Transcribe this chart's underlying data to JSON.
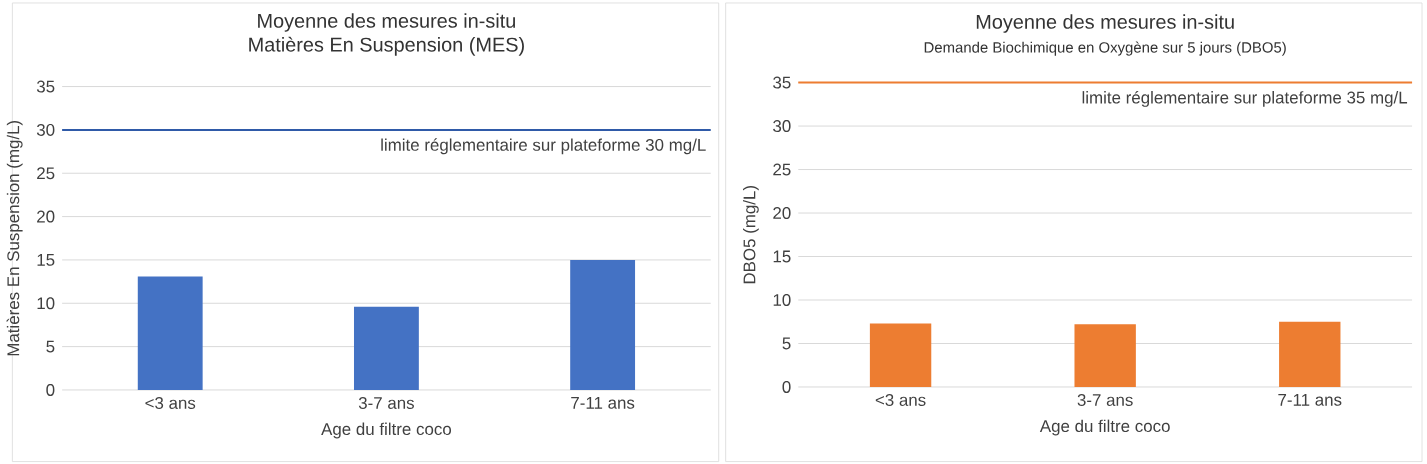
{
  "chart_data": [
    {
      "type": "bar",
      "title": "Moyenne des mesures in-situ",
      "subtitle": "Matières En Suspension (MES)",
      "xlabel": "Age du filtre coco",
      "ylabel": "Matières En Suspension (mg/L)",
      "categories": [
        "<3 ans",
        "3-7 ans",
        "7-11 ans"
      ],
      "values": [
        13.1,
        9.6,
        15
      ],
      "color": "#4472c4",
      "ylim": [
        0,
        35
      ],
      "yticks": [
        0,
        5,
        10,
        15,
        20,
        25,
        30,
        35
      ],
      "grid": "y",
      "ref_lines": [
        {
          "axis": "y",
          "value": 30,
          "label": "limite réglementaire sur plateforme 30 mg/L",
          "color": "#2f5aa8"
        }
      ]
    },
    {
      "type": "bar",
      "title": "Moyenne des mesures in-situ",
      "subtitle": "Demande Biochimique en Oxygène sur 5 jours (DBO5)",
      "xlabel": "Age du filtre coco",
      "ylabel": "DBO5 (mg/L)",
      "categories": [
        "<3 ans",
        "3-7 ans",
        "7-11 ans"
      ],
      "values": [
        7.3,
        7.2,
        7.5
      ],
      "color": "#ed7d31",
      "ylim": [
        0,
        35
      ],
      "yticks": [
        0,
        5,
        10,
        15,
        20,
        25,
        30,
        35
      ],
      "grid": "y",
      "ref_lines": [
        {
          "axis": "y",
          "value": 35,
          "label": "limite réglementaire sur plateforme 35 mg/L",
          "color": "#ed7d31"
        }
      ]
    }
  ]
}
